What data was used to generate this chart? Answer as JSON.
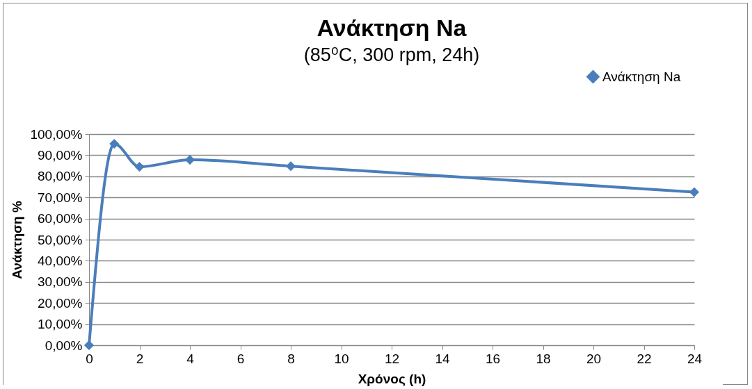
{
  "chart_data": {
    "type": "line",
    "title": "Ανάκτηση Na",
    "subtitle": "(85⁰C, 300 rpm, 24h)",
    "xlabel": "Χρόνος (h)",
    "ylabel": "Ανάκτηση %",
    "x": [
      0,
      1,
      2,
      4,
      8,
      24
    ],
    "series": [
      {
        "name": "Ανάκτηση Na",
        "color": "#4a7ebb",
        "values": [
          0,
          95.4,
          84.5,
          87.8,
          84.8,
          72.5
        ]
      }
    ],
    "xlim": [
      0,
      24
    ],
    "xticks": [
      0,
      2,
      4,
      6,
      8,
      10,
      12,
      14,
      16,
      18,
      20,
      22,
      24
    ],
    "ylim": [
      0,
      100
    ],
    "yticks": [
      {
        "value": 0,
        "label": "0,00%"
      },
      {
        "value": 10,
        "label": "10,00%"
      },
      {
        "value": 20,
        "label": "20,00%"
      },
      {
        "value": 30,
        "label": "30,00%"
      },
      {
        "value": 40,
        "label": "40,00%"
      },
      {
        "value": 50,
        "label": "50,00%"
      },
      {
        "value": 60,
        "label": "60,00%"
      },
      {
        "value": 70,
        "label": "70,00%"
      },
      {
        "value": 80,
        "label": "80,00%"
      },
      {
        "value": 90,
        "label": "90,00%"
      },
      {
        "value": 100,
        "label": "100,00%"
      }
    ],
    "grid": "y",
    "legend": "top right",
    "marker": "diamond",
    "line_style": "solid"
  }
}
